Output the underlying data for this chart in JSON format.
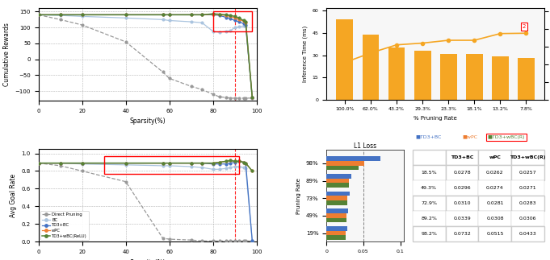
{
  "sparsity_x": [
    0,
    10,
    20,
    40,
    57,
    60,
    70,
    75,
    80,
    83,
    86,
    88,
    90,
    92,
    94,
    95,
    98
  ],
  "direct_pruning_reward": [
    140,
    125,
    108,
    55,
    -40,
    -60,
    -85,
    -95,
    -110,
    -118,
    -120,
    -122,
    -122,
    -122,
    -122,
    -122,
    -122
  ],
  "bc_reward": [
    140,
    138,
    135,
    130,
    125,
    122,
    118,
    115,
    88,
    85,
    88,
    90,
    100,
    102,
    105,
    105,
    -120
  ],
  "td3bc_reward": [
    140,
    140,
    140,
    140,
    140,
    140,
    140,
    140,
    140,
    138,
    132,
    128,
    122,
    118,
    112,
    108,
    -120
  ],
  "wpc_reward": [
    140,
    140,
    140,
    140,
    140,
    140,
    140,
    140,
    142,
    140,
    138,
    135,
    130,
    125,
    120,
    115,
    -120
  ],
  "td3wbc_reward": [
    140,
    140,
    140,
    140,
    140,
    140,
    140,
    140,
    143,
    142,
    140,
    138,
    135,
    130,
    122,
    118,
    -120
  ],
  "direct_pruning_goal": [
    0.89,
    0.86,
    0.8,
    0.68,
    0.04,
    0.03,
    0.02,
    0.01,
    0.01,
    0.01,
    0.01,
    0.01,
    0.01,
    0.01,
    0.01,
    0.01,
    0.01
  ],
  "bc_goal": [
    0.89,
    0.89,
    0.88,
    0.87,
    0.86,
    0.86,
    0.85,
    0.84,
    0.82,
    0.82,
    0.83,
    0.84,
    0.85,
    0.85,
    0.84,
    0.83,
    0.01
  ],
  "td3bc_goal": [
    0.89,
    0.89,
    0.89,
    0.89,
    0.89,
    0.89,
    0.89,
    0.89,
    0.88,
    0.88,
    0.88,
    0.89,
    0.9,
    0.91,
    0.9,
    0.89,
    0.01
  ],
  "wpc_goal": [
    0.89,
    0.89,
    0.89,
    0.89,
    0.89,
    0.89,
    0.89,
    0.89,
    0.89,
    0.9,
    0.91,
    0.92,
    0.91,
    0.91,
    0.9,
    0.89,
    0.8
  ],
  "td3wbc_goal": [
    0.89,
    0.89,
    0.89,
    0.89,
    0.89,
    0.89,
    0.89,
    0.89,
    0.89,
    0.9,
    0.91,
    0.92,
    0.91,
    0.91,
    0.9,
    0.89,
    0.8
  ],
  "pruning_labels": [
    "100.0%",
    "62.0%",
    "43.2%",
    "29.3%",
    "23.3%",
    "18.1%",
    "13.2%",
    "7.8%"
  ],
  "inference_time": [
    54,
    44,
    35,
    33,
    31,
    31,
    29,
    28
  ],
  "speedup": [
    1.05,
    1.32,
    1.55,
    1.6,
    1.68,
    1.68,
    1.87,
    1.88
  ],
  "l1_pruning_labels": [
    "19%",
    "49%",
    "73%",
    "89%",
    "98%"
  ],
  "l1_td3bc": [
    0.0278,
    0.0296,
    0.031,
    0.0339,
    0.0732
  ],
  "l1_wpc": [
    0.0262,
    0.0274,
    0.0281,
    0.0308,
    0.0515
  ],
  "l1_td3wbc": [
    0.0257,
    0.0271,
    0.0283,
    0.0306,
    0.0433
  ],
  "table_rows": [
    "18.5%",
    "49.3%",
    "72.9%",
    "89.2%",
    "98.2%"
  ],
  "table_td3bc": [
    "0.0278",
    "0.0296",
    "0.0310",
    "0.0339",
    "0.0732"
  ],
  "table_wpc": [
    "0.0262",
    "0.0274",
    "0.0281",
    "0.0308",
    "0.0515"
  ],
  "table_td3wbc": [
    "0.0257",
    "0.0271",
    "0.0283",
    "0.0306",
    "0.0433"
  ],
  "color_direct": "#999999",
  "color_bc": "#aac4df",
  "color_td3bc": "#4472c4",
  "color_wpc": "#ed7d31",
  "color_td3wbc": "#548235",
  "color_bar_orange": "#F5A623",
  "color_l1_td3bc": "#4472c4",
  "color_l1_wpc": "#ed7d31",
  "color_l1_td3wbc": "#548235"
}
